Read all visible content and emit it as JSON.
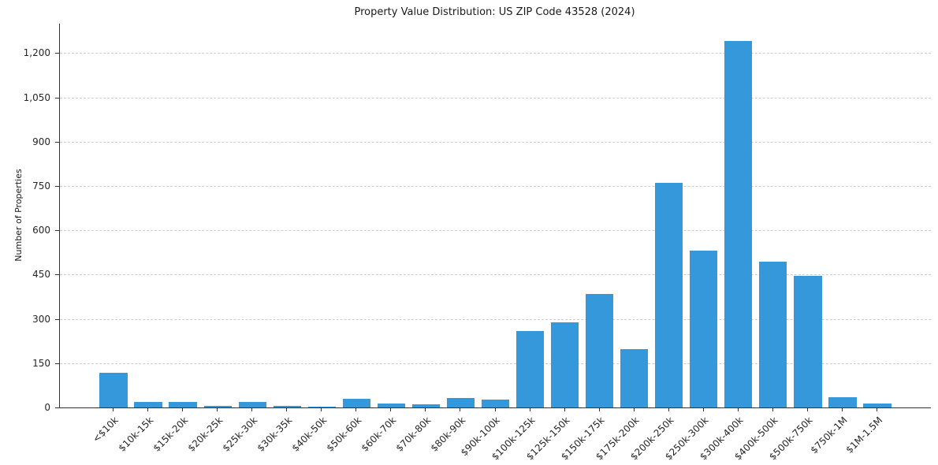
{
  "chart_data": {
    "type": "bar",
    "title": "Property Value Distribution: US ZIP Code 43528 (2024)",
    "xlabel": "",
    "ylabel": "Number of Properties",
    "categories": [
      "<$10k",
      "$10k-15k",
      "$15k-20k",
      "$20k-25k",
      "$25k-30k",
      "$30k-35k",
      "$40k-50k",
      "$50k-60k",
      "$60k-70k",
      "$70k-80k",
      "$80k-90k",
      "$90k-100k",
      "$100k-125k",
      "$125k-150k",
      "$150k-175k",
      "$175k-200k",
      "$200k-250k",
      "$250k-300k",
      "$300k-400k",
      "$400k-500k",
      "$500k-750k",
      "$750k-1M",
      "$1M-1.5M"
    ],
    "values": [
      118,
      20,
      18,
      6,
      18,
      5,
      2,
      30,
      13,
      12,
      32,
      28,
      260,
      288,
      385,
      197,
      760,
      530,
      1240,
      495,
      445,
      35,
      13
    ],
    "ylim": [
      0,
      1300
    ],
    "yticks": [
      0,
      150,
      300,
      450,
      600,
      750,
      900,
      1050,
      1200
    ],
    "grid": true,
    "legend": "none",
    "bar_color": "#3498db",
    "grid_color": "#cccccc",
    "axis_color": "#333333",
    "background": "#ffffff"
  }
}
